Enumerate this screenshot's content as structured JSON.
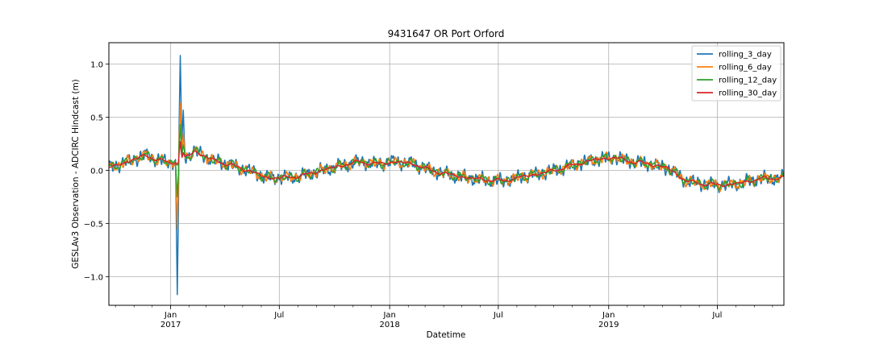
{
  "chart_data": {
    "type": "line",
    "title": "9431647 OR Port Orford",
    "xlabel": "Datetime",
    "ylabel": "GESLAv3 Observation - ADCIRC Hindcast (m)",
    "xlim": [
      "2016-09-20",
      "2019-10-20"
    ],
    "ylim": [
      -1.27,
      1.2
    ],
    "grid": true,
    "legend_position": "top-right",
    "x_ticks": [
      {
        "date": "2017-01-01",
        "label": "Jan",
        "year": "2017"
      },
      {
        "date": "2017-07-01",
        "label": "Jul",
        "year": ""
      },
      {
        "date": "2018-01-01",
        "label": "Jan",
        "year": "2018"
      },
      {
        "date": "2018-07-01",
        "label": "Jul",
        "year": ""
      },
      {
        "date": "2019-01-01",
        "label": "Jan",
        "year": "2019"
      },
      {
        "date": "2019-07-01",
        "label": "Jul",
        "year": ""
      }
    ],
    "y_ticks": [
      {
        "value": 1.0,
        "label": "1.0"
      },
      {
        "value": 0.5,
        "label": "0.5"
      },
      {
        "value": 0.0,
        "label": "0.0"
      },
      {
        "value": -0.5,
        "label": "−0.5"
      },
      {
        "value": -1.0,
        "label": "−1.0"
      }
    ],
    "series": [
      {
        "name": "rolling_3_day",
        "color": "#1f77b4",
        "noise": 0.045,
        "period": 10,
        "spike": [
          1.08,
          -1.17,
          0.85,
          -0.7
        ]
      },
      {
        "name": "rolling_6_day",
        "color": "#ff7f0e",
        "noise": 0.035,
        "period": 14,
        "spike": [
          0.63,
          -0.55,
          0.5,
          -0.35
        ]
      },
      {
        "name": "rolling_12_day",
        "color": "#2ca02c",
        "noise": 0.03,
        "period": 20,
        "spike": [
          0.43,
          -0.25,
          0.3,
          -0.1
        ]
      },
      {
        "name": "rolling_30_day",
        "color": "#d62728",
        "noise": 0.012,
        "period": 40,
        "spike": [
          0.27,
          0.05,
          0.2,
          0.1
        ]
      }
    ],
    "baseline": [
      [
        "2016-09-20",
        0.02
      ],
      [
        "2016-10-20",
        0.08
      ],
      [
        "2016-11-20",
        0.14
      ],
      [
        "2016-12-10",
        0.1
      ],
      [
        "2016-12-30",
        0.07
      ],
      [
        "2017-01-20",
        0.1
      ],
      [
        "2017-02-10",
        0.18
      ],
      [
        "2017-03-10",
        0.1
      ],
      [
        "2017-04-10",
        0.05
      ],
      [
        "2017-05-10",
        0.0
      ],
      [
        "2017-06-10",
        -0.07
      ],
      [
        "2017-07-10",
        -0.07
      ],
      [
        "2017-08-10",
        -0.05
      ],
      [
        "2017-09-10",
        0.0
      ],
      [
        "2017-10-10",
        0.04
      ],
      [
        "2017-11-10",
        0.08
      ],
      [
        "2017-12-10",
        0.06
      ],
      [
        "2018-01-10",
        0.08
      ],
      [
        "2018-02-10",
        0.06
      ],
      [
        "2018-03-10",
        0.0
      ],
      [
        "2018-04-10",
        -0.04
      ],
      [
        "2018-05-10",
        -0.07
      ],
      [
        "2018-06-10",
        -0.09
      ],
      [
        "2018-07-10",
        -0.1
      ],
      [
        "2018-08-10",
        -0.06
      ],
      [
        "2018-09-10",
        -0.03
      ],
      [
        "2018-10-10",
        0.01
      ],
      [
        "2018-11-10",
        0.06
      ],
      [
        "2018-12-10",
        0.1
      ],
      [
        "2019-01-10",
        0.12
      ],
      [
        "2019-02-10",
        0.08
      ],
      [
        "2019-03-10",
        0.06
      ],
      [
        "2019-04-10",
        0.02
      ],
      [
        "2019-05-10",
        -0.1
      ],
      [
        "2019-06-10",
        -0.13
      ],
      [
        "2019-07-10",
        -0.14
      ],
      [
        "2019-08-10",
        -0.12
      ],
      [
        "2019-09-10",
        -0.08
      ],
      [
        "2019-10-20",
        -0.07
      ]
    ],
    "spike_dates": [
      "2017-01-12",
      "2017-01-17"
    ]
  }
}
